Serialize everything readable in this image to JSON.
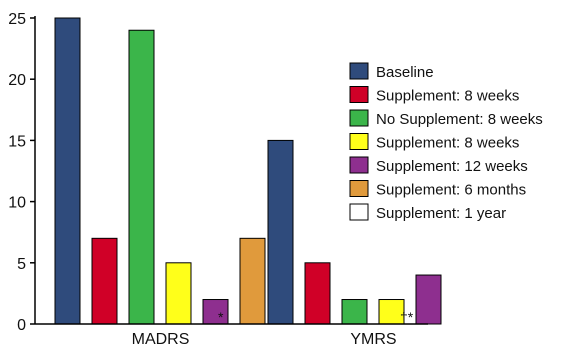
{
  "chart_data": {
    "type": "bar",
    "title": "",
    "xlabel": "",
    "ylabel": "",
    "ylim": [
      0,
      25
    ],
    "yticks": [
      0,
      5,
      10,
      15,
      20,
      25
    ],
    "categories": [
      "MADRS",
      "YMRS"
    ],
    "legend_position": "right",
    "grid": false,
    "series": [
      {
        "name": "Baseline",
        "color": "#2f4b7c",
        "values": [
          25,
          15
        ]
      },
      {
        "name": "Supplement: 8 weeks",
        "color": "#d00027",
        "values": [
          7,
          5
        ]
      },
      {
        "name": "No Supplement: 8 weeks",
        "color": "#3bb54a",
        "values": [
          24,
          2
        ]
      },
      {
        "name": "Supplement: 8 weeks",
        "color": "#ffff1a",
        "values": [
          5,
          2
        ]
      },
      {
        "name": "Supplement: 12 weeks",
        "color": "#8e2f8f",
        "values": [
          2,
          4
        ]
      },
      {
        "name": "Supplement: 6 months",
        "color": "#e09a3c",
        "values": [
          7,
          null
        ]
      },
      {
        "name": "Supplement: 1 year",
        "color": "#ffffff",
        "values": [
          null,
          null
        ]
      }
    ],
    "annotations": [
      "*",
      "†*"
    ]
  }
}
